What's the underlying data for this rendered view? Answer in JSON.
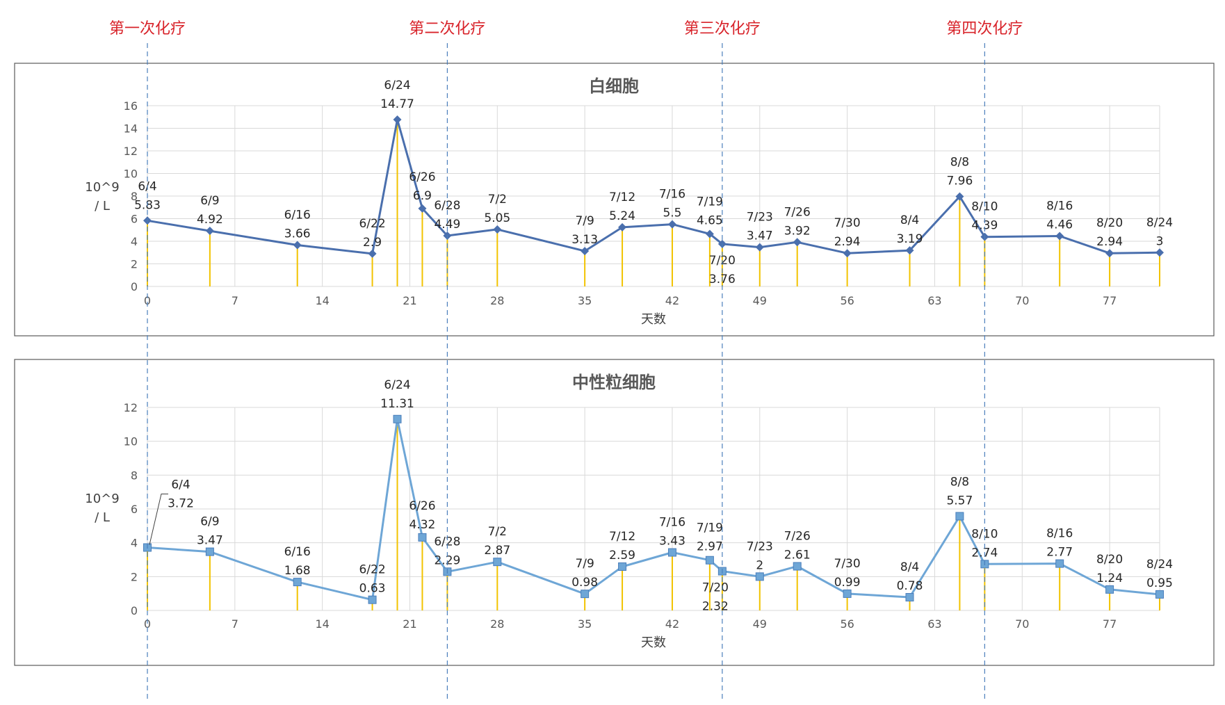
{
  "cycles": [
    {
      "label": "第一次化疗",
      "day": 0
    },
    {
      "label": "第二次化疗",
      "day": 24
    },
    {
      "label": "第三次化疗",
      "day": 46
    },
    {
      "label": "第四次化疗",
      "day": 67
    }
  ],
  "chart_data": [
    {
      "type": "line",
      "title": "白细胞",
      "xlabel": "天数",
      "ylabel": "10^9\n/ L",
      "xlim": [
        0,
        81
      ],
      "xticks": [
        0,
        7,
        14,
        21,
        28,
        35,
        42,
        49,
        56,
        63,
        70,
        77
      ],
      "ylim": [
        0,
        16
      ],
      "yticks": [
        0,
        2,
        4,
        6,
        8,
        10,
        12,
        14,
        16
      ],
      "grid": true,
      "drop_lines": true,
      "color": "#4a6fad",
      "marker": "diamond",
      "points": [
        {
          "x": 0,
          "y": 5.83,
          "date": "6/4"
        },
        {
          "x": 5,
          "y": 4.92,
          "date": "6/9"
        },
        {
          "x": 12,
          "y": 3.66,
          "date": "6/16"
        },
        {
          "x": 18,
          "y": 2.9,
          "date": "6/22"
        },
        {
          "x": 20,
          "y": 14.77,
          "date": "6/24"
        },
        {
          "x": 22,
          "y": 6.9,
          "date": "6/26"
        },
        {
          "x": 24,
          "y": 4.49,
          "date": "6/28"
        },
        {
          "x": 28,
          "y": 5.05,
          "date": "7/2"
        },
        {
          "x": 35,
          "y": 3.13,
          "date": "7/9"
        },
        {
          "x": 38,
          "y": 5.24,
          "date": "7/12"
        },
        {
          "x": 42,
          "y": 5.5,
          "date": "7/16"
        },
        {
          "x": 45,
          "y": 4.65,
          "date": "7/19"
        },
        {
          "x": 46,
          "y": 3.76,
          "date": "7/20"
        },
        {
          "x": 49,
          "y": 3.47,
          "date": "7/23"
        },
        {
          "x": 52,
          "y": 3.92,
          "date": "7/26"
        },
        {
          "x": 56,
          "y": 2.94,
          "date": "7/30"
        },
        {
          "x": 61,
          "y": 3.19,
          "date": "8/4"
        },
        {
          "x": 65,
          "y": 7.96,
          "date": "8/8"
        },
        {
          "x": 67,
          "y": 4.39,
          "date": "8/10"
        },
        {
          "x": 73,
          "y": 4.46,
          "date": "8/16"
        },
        {
          "x": 77,
          "y": 2.94,
          "date": "8/20"
        },
        {
          "x": 81,
          "y": 3,
          "date": "8/24"
        }
      ]
    },
    {
      "type": "line",
      "title": "中性粒细胞",
      "xlabel": "天数",
      "ylabel": "10^9\n/ L",
      "xlim": [
        0,
        81
      ],
      "xticks": [
        0,
        7,
        14,
        21,
        28,
        35,
        42,
        49,
        56,
        63,
        70,
        77
      ],
      "ylim": [
        0,
        12
      ],
      "yticks": [
        0,
        2,
        4,
        6,
        8,
        10,
        12
      ],
      "grid": true,
      "drop_lines": true,
      "color": "#6ea6d6",
      "marker": "square",
      "points": [
        {
          "x": 0,
          "y": 3.72,
          "date": "6/4"
        },
        {
          "x": 5,
          "y": 3.47,
          "date": "6/9"
        },
        {
          "x": 12,
          "y": 1.68,
          "date": "6/16"
        },
        {
          "x": 18,
          "y": 0.63,
          "date": "6/22"
        },
        {
          "x": 20,
          "y": 11.31,
          "date": "6/24"
        },
        {
          "x": 22,
          "y": 4.32,
          "date": "6/26"
        },
        {
          "x": 24,
          "y": 2.29,
          "date": "6/28"
        },
        {
          "x": 28,
          "y": 2.87,
          "date": "7/2"
        },
        {
          "x": 35,
          "y": 0.98,
          "date": "7/9"
        },
        {
          "x": 38,
          "y": 2.59,
          "date": "7/12"
        },
        {
          "x": 42,
          "y": 3.43,
          "date": "7/16"
        },
        {
          "x": 45,
          "y": 2.97,
          "date": "7/19"
        },
        {
          "x": 46,
          "y": 2.32,
          "date": "7/20"
        },
        {
          "x": 49,
          "y": 2,
          "date": "7/23"
        },
        {
          "x": 52,
          "y": 2.61,
          "date": "7/26"
        },
        {
          "x": 56,
          "y": 0.99,
          "date": "7/30"
        },
        {
          "x": 61,
          "y": 0.78,
          "date": "8/4"
        },
        {
          "x": 65,
          "y": 5.57,
          "date": "8/8"
        },
        {
          "x": 67,
          "y": 2.74,
          "date": "8/10"
        },
        {
          "x": 73,
          "y": 2.77,
          "date": "8/16"
        },
        {
          "x": 77,
          "y": 1.24,
          "date": "8/20"
        },
        {
          "x": 81,
          "y": 0.95,
          "date": "8/24"
        }
      ]
    }
  ]
}
